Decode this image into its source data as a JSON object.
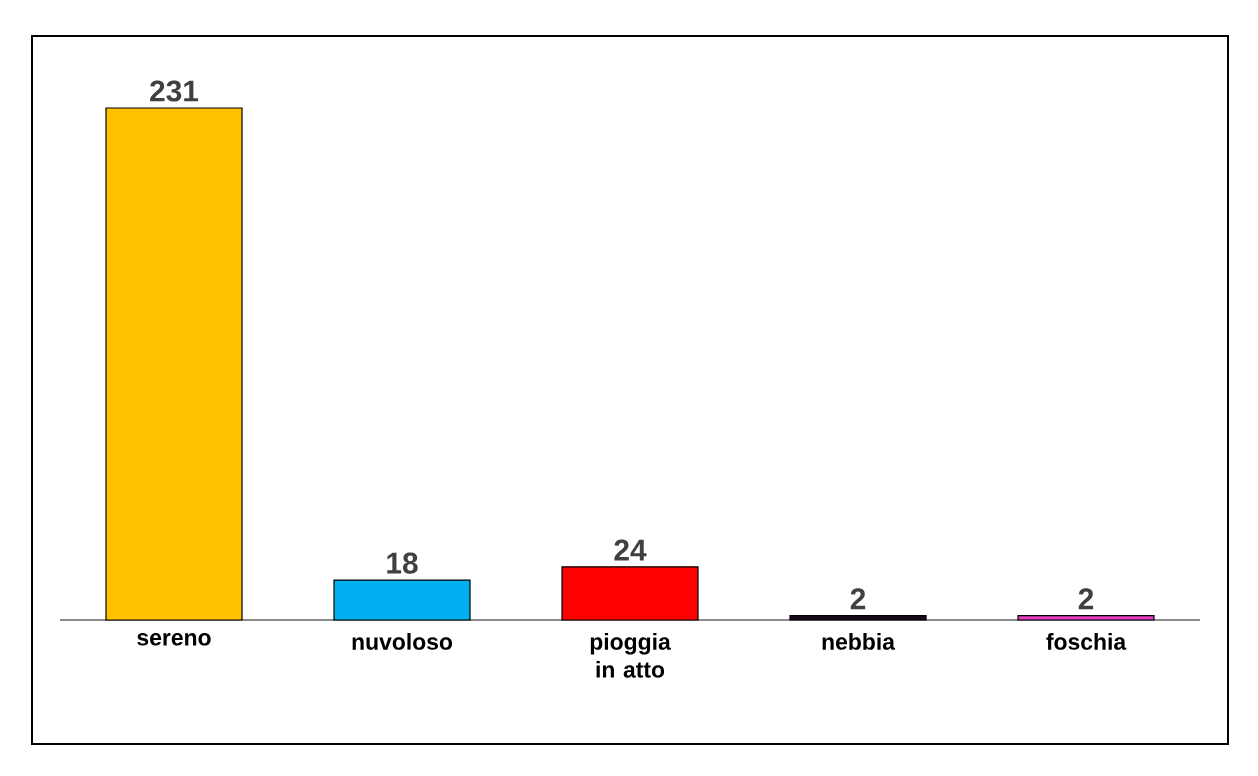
{
  "chart_data": {
    "type": "bar",
    "categories": [
      "sereno",
      "nuvoloso",
      "pioggia in atto",
      "nebbia",
      "foschia"
    ],
    "values": [
      231,
      18,
      24,
      2,
      2
    ],
    "colors": [
      "#ffc000",
      "#00b0f0",
      "#ff0000",
      "#1a0a1a",
      "#e040c0"
    ],
    "data_labels": true,
    "grid": false
  }
}
